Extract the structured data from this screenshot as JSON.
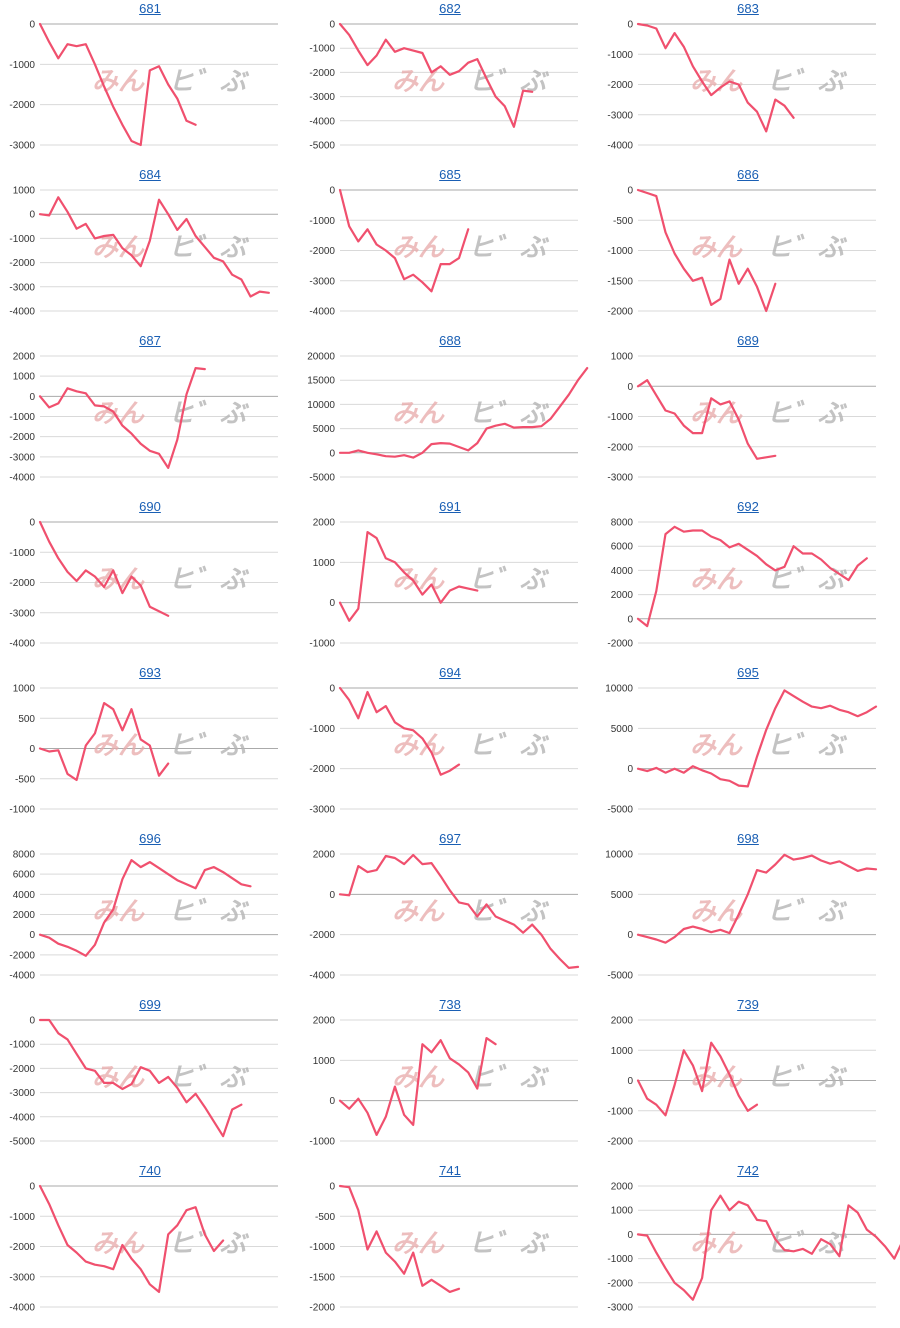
{
  "theme": {
    "line_color": "#f0506e",
    "grid_color": "#d9d9d9",
    "axis_color": "#aaaaaa",
    "title_color": "#1a5fb4"
  },
  "watermark": {
    "left": "みん",
    "right": "ヒ゛ぶ"
  },
  "chart_data": [
    {
      "type": "line",
      "title": "681",
      "ylim": [
        -3000,
        0
      ],
      "yticks": [
        0,
        -1000,
        -2000,
        -3000
      ],
      "values": [
        0,
        -450,
        -850,
        -500,
        -550,
        -500,
        -1000,
        -1550,
        -2050,
        -2500,
        -2900,
        -3000,
        -1150,
        -1050,
        -1500,
        -1850,
        -2400,
        -2500
      ]
    },
    {
      "type": "line",
      "title": "682",
      "ylim": [
        -5000,
        0
      ],
      "yticks": [
        0,
        -1000,
        -2000,
        -3000,
        -4000,
        -5000
      ],
      "values": [
        0,
        -450,
        -1100,
        -1700,
        -1300,
        -650,
        -1150,
        -1000,
        -1100,
        -1200,
        -2000,
        -1750,
        -2100,
        -1950,
        -1600,
        -1450,
        -2250,
        -3000,
        -3400,
        -4250,
        -2750,
        -2800
      ]
    },
    {
      "type": "line",
      "title": "683",
      "ylim": [
        -4000,
        0
      ],
      "yticks": [
        0,
        -1000,
        -2000,
        -3000,
        -4000
      ],
      "values": [
        0,
        -50,
        -150,
        -800,
        -300,
        -750,
        -1400,
        -1900,
        -2350,
        -2100,
        -1900,
        -2000,
        -2600,
        -2900,
        -3550,
        -2500,
        -2700,
        -3100
      ]
    },
    {
      "type": "line",
      "title": "684",
      "ylim": [
        -4000,
        1000
      ],
      "yticks": [
        1000,
        0,
        -1000,
        -2000,
        -3000,
        -4000
      ],
      "values": [
        0,
        -50,
        700,
        100,
        -600,
        -400,
        -1000,
        -900,
        -850,
        -1400,
        -1700,
        -2150,
        -1100,
        600,
        0,
        -650,
        -200,
        -900,
        -1350,
        -1800,
        -1950,
        -2500,
        -2700,
        -3400,
        -3200,
        -3250
      ]
    },
    {
      "type": "line",
      "title": "685",
      "ylim": [
        -4000,
        0
      ],
      "yticks": [
        0,
        -1000,
        -2000,
        -3000,
        -4000
      ],
      "values": [
        0,
        -1200,
        -1700,
        -1300,
        -1800,
        -2000,
        -2250,
        -2950,
        -2800,
        -3050,
        -3350,
        -2450,
        -2450,
        -2250,
        -1300
      ]
    },
    {
      "type": "line",
      "title": "686",
      "ylim": [
        -2000,
        0
      ],
      "yticks": [
        0,
        -500,
        -1000,
        -1500,
        -2000
      ],
      "values": [
        0,
        -50,
        -100,
        -700,
        -1050,
        -1300,
        -1500,
        -1450,
        -1900,
        -1800,
        -1150,
        -1550,
        -1300,
        -1600,
        -2000,
        -1550
      ]
    },
    {
      "type": "line",
      "title": "687",
      "ylim": [
        -4000,
        2000
      ],
      "yticks": [
        2000,
        1000,
        0,
        -1000,
        -2000,
        -3000,
        -4000
      ],
      "values": [
        0,
        -550,
        -350,
        400,
        250,
        150,
        -450,
        -500,
        -750,
        -1450,
        -1850,
        -2350,
        -2700,
        -2850,
        -3550,
        -2150,
        100,
        1400,
        1350
      ]
    },
    {
      "type": "line",
      "title": "688",
      "ylim": [
        -5000,
        20000
      ],
      "yticks": [
        20000,
        15000,
        10000,
        5000,
        0,
        -5000
      ],
      "values": [
        0,
        0,
        500,
        0,
        -300,
        -700,
        -800,
        -500,
        -1000,
        0,
        1800,
        2000,
        1900,
        1200,
        500,
        2000,
        5000,
        5600,
        6000,
        5200,
        5300,
        5300,
        5500,
        7000,
        9500,
        12000,
        15000,
        17500
      ]
    },
    {
      "type": "line",
      "title": "689",
      "ylim": [
        -3000,
        1000
      ],
      "yticks": [
        1000,
        0,
        -1000,
        -2000,
        -3000
      ],
      "values": [
        0,
        200,
        -300,
        -800,
        -900,
        -1300,
        -1550,
        -1550,
        -400,
        -600,
        -500,
        -1100,
        -1900,
        -2400,
        -2350,
        -2300
      ]
    },
    {
      "type": "line",
      "title": "690",
      "ylim": [
        -4000,
        0
      ],
      "yticks": [
        0,
        -1000,
        -2000,
        -3000,
        -4000
      ],
      "values": [
        0,
        -650,
        -1200,
        -1650,
        -1950,
        -1600,
        -1800,
        -2150,
        -1600,
        -2350,
        -1800,
        -2100,
        -2800,
        -2950,
        -3100
      ]
    },
    {
      "type": "line",
      "title": "691",
      "ylim": [
        -1000,
        2000
      ],
      "yticks": [
        2000,
        1000,
        0,
        -1000
      ],
      "values": [
        0,
        -450,
        -150,
        1750,
        1600,
        1100,
        1000,
        750,
        550,
        200,
        450,
        0,
        300,
        400,
        350,
        300
      ]
    },
    {
      "type": "line",
      "title": "692",
      "ylim": [
        -2000,
        8000
      ],
      "yticks": [
        8000,
        6000,
        4000,
        2000,
        0,
        -2000
      ],
      "values": [
        0,
        -600,
        2300,
        7000,
        7600,
        7200,
        7300,
        7300,
        6800,
        6500,
        5900,
        6200,
        5700,
        5200,
        4500,
        4000,
        4300,
        6000,
        5400,
        5400,
        4900,
        4200,
        3700,
        3200,
        4400,
        5000
      ]
    },
    {
      "type": "line",
      "title": "693",
      "ylim": [
        -1000,
        1000
      ],
      "yticks": [
        1000,
        500,
        0,
        -500,
        -1000
      ],
      "values": [
        0,
        -50,
        -30,
        -420,
        -520,
        50,
        250,
        750,
        650,
        300,
        650,
        150,
        50,
        -450,
        -250
      ]
    },
    {
      "type": "line",
      "title": "694",
      "ylim": [
        -3000,
        0
      ],
      "yticks": [
        0,
        -1000,
        -2000,
        -3000
      ],
      "values": [
        0,
        -300,
        -750,
        -100,
        -600,
        -450,
        -850,
        -1000,
        -1050,
        -1250,
        -1600,
        -2150,
        -2050,
        -1900
      ]
    },
    {
      "type": "line",
      "title": "695",
      "ylim": [
        -5000,
        10000
      ],
      "yticks": [
        10000,
        5000,
        0,
        -5000
      ],
      "values": [
        0,
        -300,
        100,
        -500,
        0,
        -500,
        300,
        -200,
        -600,
        -1300,
        -1500,
        -2100,
        -2200,
        1500,
        4800,
        7500,
        9700,
        9000,
        8300,
        7700,
        7500,
        7800,
        7300,
        7000,
        6500,
        7000,
        7700
      ]
    },
    {
      "type": "line",
      "title": "696",
      "ylim": [
        -4000,
        8000
      ],
      "yticks": [
        8000,
        6000,
        4000,
        2000,
        0,
        -2000,
        -4000
      ],
      "values": [
        0,
        -300,
        -900,
        -1200,
        -1600,
        -2100,
        -1000,
        1200,
        2500,
        5500,
        7400,
        6700,
        7200,
        6600,
        6000,
        5400,
        5000,
        4600,
        6400,
        6700,
        6200,
        5600,
        5000,
        4800
      ]
    },
    {
      "type": "line",
      "title": "697",
      "ylim": [
        -4000,
        2000
      ],
      "yticks": [
        2000,
        0,
        -2000,
        -4000
      ],
      "values": [
        0,
        -50,
        1400,
        1100,
        1200,
        1900,
        1800,
        1500,
        1950,
        1500,
        1550,
        900,
        200,
        -400,
        -500,
        -1100,
        -500,
        -1100,
        -1300,
        -1500,
        -1900,
        -1500,
        -2000,
        -2700,
        -3200,
        -3650,
        -3600
      ]
    },
    {
      "type": "line",
      "title": "698",
      "ylim": [
        -5000,
        10000
      ],
      "yticks": [
        10000,
        5000,
        0,
        -5000
      ],
      "values": [
        0,
        -300,
        -600,
        -1000,
        -300,
        700,
        1000,
        700,
        300,
        600,
        200,
        2500,
        5000,
        8000,
        7700,
        8700,
        9900,
        9300,
        9500,
        9800,
        9200,
        8800,
        9100,
        8500,
        7900,
        8200,
        8100
      ]
    },
    {
      "type": "line",
      "title": "699",
      "ylim": [
        -5000,
        0
      ],
      "yticks": [
        0,
        -1000,
        -2000,
        -3000,
        -4000,
        -5000
      ],
      "values": [
        0,
        0,
        -550,
        -800,
        -1400,
        -2000,
        -2100,
        -2600,
        -2600,
        -2850,
        -2650,
        -1950,
        -2100,
        -2600,
        -2350,
        -2800,
        -3400,
        -3050,
        -3600,
        -4200,
        -4800,
        -3700,
        -3500
      ]
    },
    {
      "type": "line",
      "title": "738",
      "ylim": [
        -1000,
        2000
      ],
      "yticks": [
        2000,
        1000,
        0,
        -1000
      ],
      "values": [
        0,
        -200,
        50,
        -300,
        -850,
        -400,
        350,
        -350,
        -600,
        1400,
        1200,
        1500,
        1050,
        900,
        700,
        300,
        1550,
        1400
      ]
    },
    {
      "type": "line",
      "title": "739",
      "ylim": [
        -2000,
        2000
      ],
      "yticks": [
        2000,
        1000,
        0,
        -1000,
        -2000
      ],
      "values": [
        0,
        -600,
        -800,
        -1150,
        -150,
        1000,
        500,
        -350,
        1250,
        800,
        200,
        -500,
        -1000,
        -800
      ]
    },
    {
      "type": "line",
      "title": "740",
      "ylim": [
        -4000,
        0
      ],
      "yticks": [
        0,
        -1000,
        -2000,
        -3000,
        -4000
      ],
      "values": [
        0,
        -600,
        -1300,
        -1950,
        -2200,
        -2500,
        -2600,
        -2650,
        -2750,
        -1950,
        -2400,
        -2750,
        -3250,
        -3500,
        -1600,
        -1300,
        -800,
        -700,
        -1600,
        -2150,
        -1800
      ]
    },
    {
      "type": "line",
      "title": "741",
      "ylim": [
        -2000,
        0
      ],
      "yticks": [
        0,
        -500,
        -1000,
        -1500,
        -2000
      ],
      "values": [
        0,
        -20,
        -400,
        -1050,
        -750,
        -1100,
        -1250,
        -1450,
        -1100,
        -1650,
        -1550,
        -1650,
        -1750,
        -1700
      ]
    },
    {
      "type": "line",
      "title": "742",
      "ylim": [
        -3000,
        2000
      ],
      "yticks": [
        2000,
        1000,
        0,
        -1000,
        -2000,
        -3000
      ],
      "values": [
        0,
        -50,
        -750,
        -1400,
        -2000,
        -2300,
        -2700,
        -1800,
        1000,
        1600,
        1000,
        1350,
        1200,
        600,
        550,
        -200,
        -650,
        -700,
        -600,
        -800,
        -200,
        -400,
        -900,
        1200,
        900,
        200,
        -100,
        -500,
        -1000,
        -200
      ]
    }
  ]
}
